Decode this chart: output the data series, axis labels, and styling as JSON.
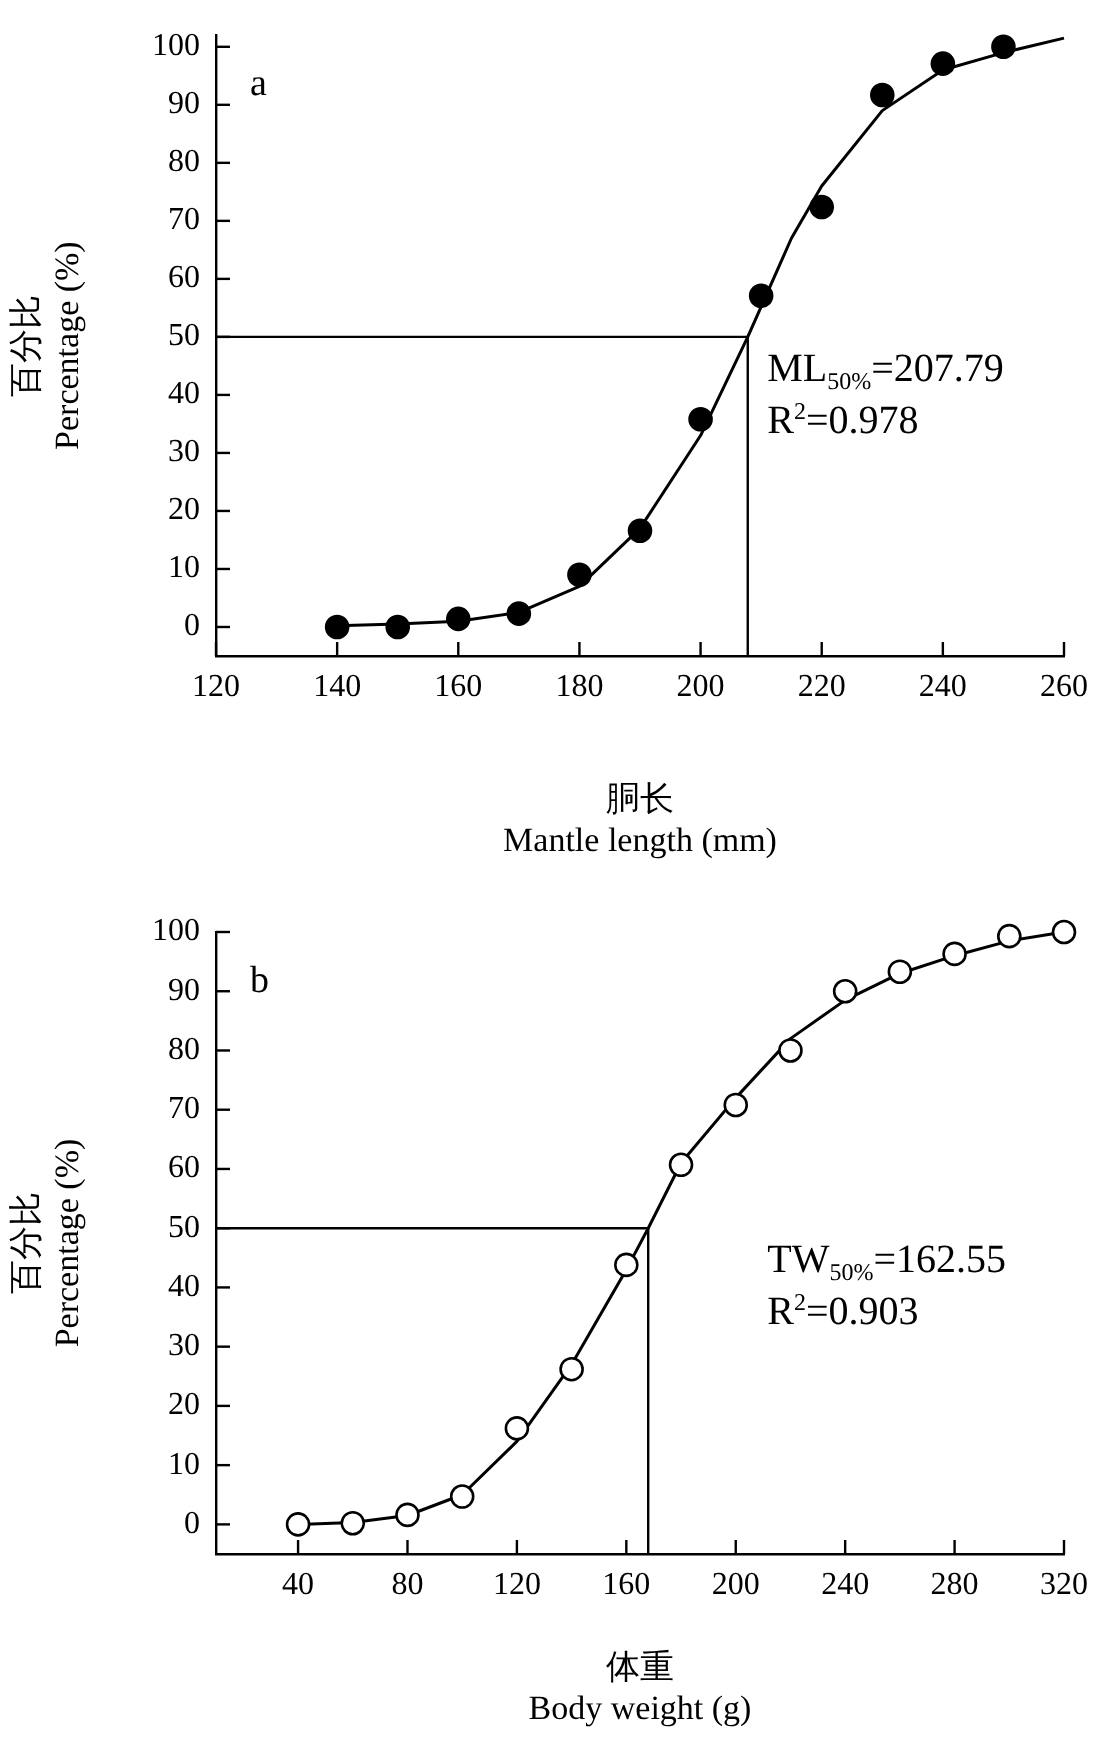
{
  "chart_data": [
    {
      "type": "scatter",
      "xlabel": "胴长\nMantle length (mm)",
      "ylabel": "百分比\nPercentage (%)",
      "marker": "circle",
      "annotations": [
        "a",
        "ML$_{50%}$=207.79",
        "R$^{2}$=0.978"
      ],
      "xlim": [
        120,
        260
      ],
      "xticks": [
        120,
        140,
        160,
        180,
        200,
        220,
        240,
        260
      ],
      "ylim": [
        -5,
        102
      ],
      "yticks": [
        0,
        10,
        20,
        30,
        40,
        50,
        60,
        70,
        80,
        90,
        100
      ],
      "x": [
        140,
        150,
        160,
        170,
        180,
        190,
        200,
        210,
        220,
        230,
        240,
        250
      ],
      "ref_lines": [
        {
          "axis": "x",
          "value": 207.79,
          "color": "#000000"
        },
        {
          "axis": "y",
          "value": 50,
          "color": "#000000"
        }
      ],
      "series": [
        {
          "type": "scatter",
          "color": "#000000",
          "values": [
            0,
            0,
            1.4,
            2.3,
            9,
            16.6,
            35.8,
            57.1,
            72.4,
            91.7,
            97.1,
            100
          ]
        },
        {
          "type": "line",
          "color": "#000000",
          "marker": "none",
          "x": [
            140,
            150,
            160,
            170,
            180,
            190,
            200,
            207.79,
            215,
            220,
            230,
            240,
            250,
            260
          ],
          "values": [
            0.2,
            0.5,
            1,
            2.5,
            7,
            17,
            33,
            50,
            67,
            76,
            89,
            96,
            99,
            101.5
          ]
        }
      ]
    },
    {
      "type": "scatter",
      "xlabel": "体重\nBody weight (g)",
      "ylabel": "百分比\nPercentage (%)",
      "marker": "circle",
      "annotations": [
        "b",
        "TW$_{50%}$=162.55",
        "R$^{2}$=0.903"
      ],
      "xlim": [
        10,
        320
      ],
      "xticks": [
        40,
        80,
        120,
        160,
        200,
        240,
        280,
        320
      ],
      "ylim": [
        -5,
        100
      ],
      "yticks": [
        0,
        10,
        20,
        30,
        40,
        50,
        60,
        70,
        80,
        90,
        100
      ],
      "x": [
        40,
        60,
        80,
        100,
        120,
        140,
        160,
        180,
        200,
        220,
        240,
        260,
        280,
        300,
        320
      ],
      "ref_lines": [
        {
          "axis": "x",
          "value": 168,
          "color": "#000000"
        },
        {
          "axis": "y",
          "value": 50,
          "color": "#000000"
        }
      ],
      "series": [
        {
          "type": "scatter",
          "color": "#000000",
          "values": [
            0,
            0.2,
            1.6,
            4.7,
            16.2,
            26.2,
            43.8,
            60.7,
            70.8,
            80,
            90,
            93.3,
            96.3,
            99.3,
            100
          ]
        },
        {
          "type": "line",
          "color": "#000000",
          "marker": "none",
          "x": [
            40,
            60,
            80,
            100,
            120,
            140,
            160,
            168,
            180,
            200,
            220,
            240,
            260,
            280,
            300,
            320
          ],
          "values": [
            0,
            0.3,
            1.5,
            5,
            14,
            27,
            43,
            50,
            61,
            72,
            82,
            88.5,
            93,
            96,
            98.5,
            100
          ]
        }
      ]
    }
  ]
}
